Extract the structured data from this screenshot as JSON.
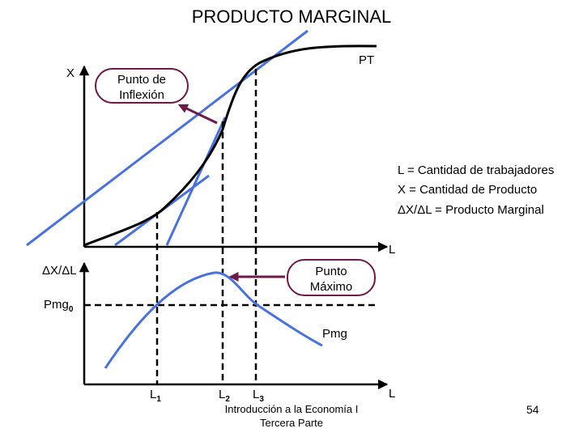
{
  "title": "PRODUCTO MARGINAL",
  "top_graph": {
    "y_axis_label": "X",
    "x_axis_label": "L",
    "curve_label": "PT",
    "annotation": {
      "line1": "Punto de",
      "line2": "Inflexión"
    }
  },
  "legend": {
    "line1": "L = Cantidad de trabajadores",
    "line2": "X = Cantidad de Producto",
    "line3": "ΔX/ΔL = Producto Marginal"
  },
  "bottom_graph": {
    "y_axis_label": "ΔX/ΔL",
    "x_axis_label": "L",
    "curve_label": "Pmg",
    "pmg0": {
      "main": "Pmg",
      "sub": "0"
    },
    "annotation": {
      "line1": "Punto",
      "line2": "Máximo"
    },
    "ticks": [
      {
        "main": "L",
        "sub": "1"
      },
      {
        "main": "L",
        "sub": "2"
      },
      {
        "main": "L",
        "sub": "3"
      }
    ]
  },
  "colors": {
    "tangent_lines": "#4a72d8",
    "curve": "#000000",
    "arrow": "#6b1a4a"
  },
  "footer": {
    "line1": "Introducción a la Economía I",
    "line2": "Tercera Parte",
    "page_number": "54"
  }
}
